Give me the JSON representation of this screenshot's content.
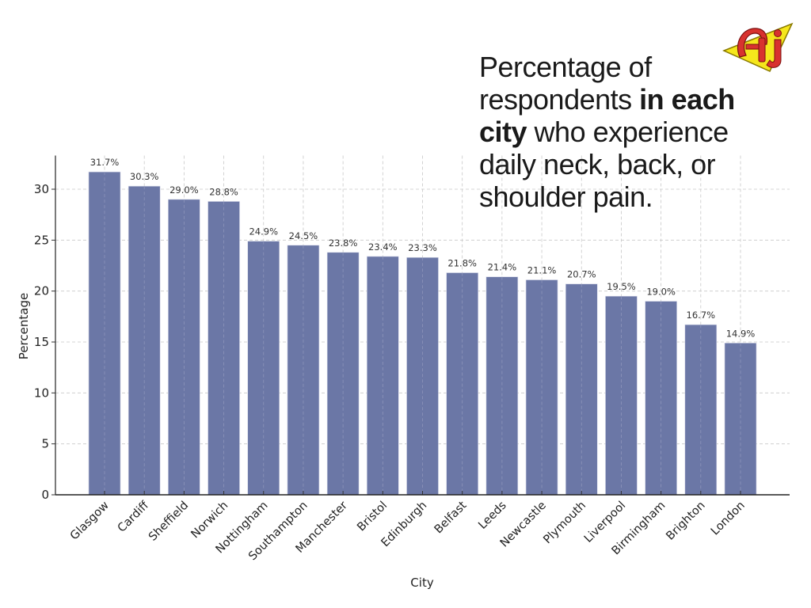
{
  "title": {
    "parts": [
      {
        "text": "Percentage of respondents ",
        "bold": false
      },
      {
        "text": "in each city",
        "bold": true
      },
      {
        "text": " who experience daily neck, back, or shoulder pain.",
        "bold": false
      }
    ]
  },
  "logo": {
    "text": "AJ",
    "icon": "aj-brand-logo"
  },
  "chart_data": {
    "type": "bar",
    "title": "Percentage of respondents in each city who experience daily neck, back, or shoulder pain.",
    "xlabel": "City",
    "ylabel": "Percentage",
    "categories": [
      "Glasgow",
      "Cardiff",
      "Sheffield",
      "Norwich",
      "Nottingham",
      "Southampton",
      "Manchester",
      "Bristol",
      "Edinburgh",
      "Belfast",
      "Leeds",
      "Newcastle",
      "Plymouth",
      "Liverpool",
      "Birmingham",
      "Brighton",
      "London"
    ],
    "values": [
      31.7,
      30.3,
      29.0,
      28.8,
      24.9,
      24.5,
      23.8,
      23.4,
      23.3,
      21.8,
      21.4,
      21.1,
      20.7,
      19.5,
      19.0,
      16.7,
      14.9
    ],
    "data_labels": [
      "31.7%",
      "30.3%",
      "29.0%",
      "28.8%",
      "24.9%",
      "24.5%",
      "23.8%",
      "23.4%",
      "23.3%",
      "21.8%",
      "21.4%",
      "21.1%",
      "20.7%",
      "19.5%",
      "19.0%",
      "16.7%",
      "14.9%"
    ],
    "yticks": [
      0,
      5,
      10,
      15,
      20,
      25,
      30
    ],
    "ylim": [
      0,
      33.3
    ],
    "grid": true,
    "bar_color": "#6b77a6",
    "x_tick_rotation_deg": 45
  }
}
